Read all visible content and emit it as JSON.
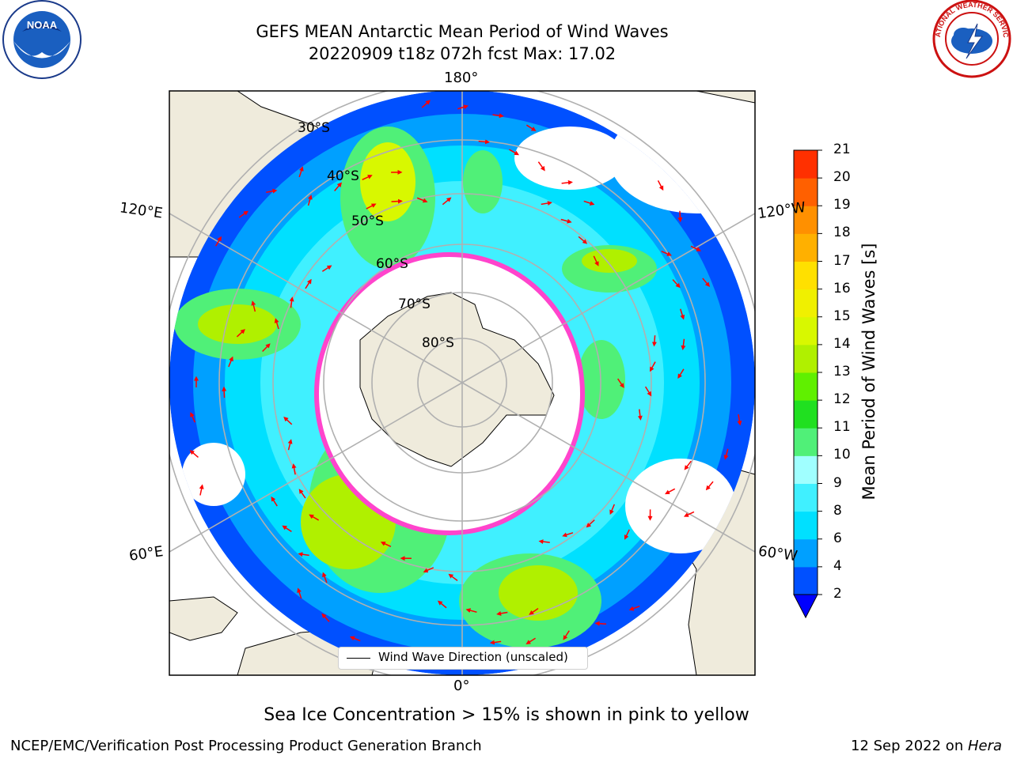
{
  "title": {
    "line1": "GEFS MEAN Antarctic Mean Period of Wind Waves",
    "line2": "20220909 t18z 072h fcst   Max: 17.02"
  },
  "map": {
    "projection": "south polar stereographic",
    "longitude_labels": {
      "top": "180°",
      "bottom": "0°",
      "left_upper": "120°E",
      "left_lower": "60°E",
      "right_upper": "120°W",
      "right_lower": "60°W"
    },
    "latitude_labels": [
      "30°S",
      "40°S",
      "50°S",
      "60°S",
      "70°S",
      "80°S"
    ],
    "legend": "Wind Wave Direction (unscaled)",
    "arrow_color": "#ff0000",
    "land_color": "#efebdc",
    "sea_ice_color": "#ff44cc"
  },
  "colorbar": {
    "label": "Mean Period of Wind Waves [s]",
    "ticks": [
      "2",
      "4",
      "6",
      "8",
      "9",
      "10",
      "11",
      "12",
      "13",
      "14",
      "15",
      "16",
      "17",
      "18",
      "19",
      "20",
      "21"
    ],
    "colors": [
      "#0050ff",
      "#00a0ff",
      "#00e0ff",
      "#40f0ff",
      "#a0ffff",
      "#50f078",
      "#20e020",
      "#60f000",
      "#b0f000",
      "#d8f800",
      "#f0f000",
      "#ffe000",
      "#ffb000",
      "#ff9000",
      "#ff6000",
      "#ff3000"
    ],
    "extend_color": "#0000ff"
  },
  "caption": "Sea Ice Concentration > 15% is shown in pink to yellow",
  "footer": {
    "left": "NCEP/EMC/Verification Post Processing Product Generation Branch",
    "right_date": "12 Sep 2022 on ",
    "right_machine": "Hera"
  },
  "logos": {
    "left": "NOAA",
    "right": "NATIONAL WEATHER SERVICE"
  }
}
